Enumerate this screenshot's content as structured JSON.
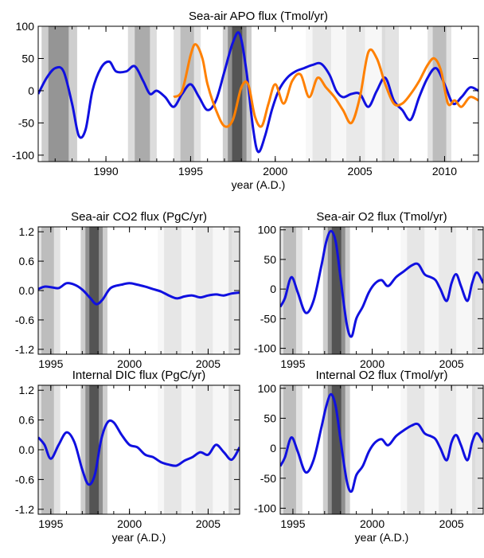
{
  "chart_data": [
    {
      "id": "apo",
      "type": "line",
      "title": "Sea-air APO flux (Tmol/yr)",
      "xlabel": "year (A.D.)",
      "ylabel": "",
      "xlim": [
        1986,
        2012
      ],
      "ylim": [
        -110,
        100
      ],
      "xticks": [
        1990,
        1995,
        2000,
        2005,
        2010
      ],
      "yticks": [
        -100,
        -50,
        0,
        50,
        100
      ],
      "series": [
        {
          "color": "#1010e0",
          "x": [
            1986,
            1986.5,
            1987,
            1987.5,
            1988,
            1988.4,
            1988.8,
            1989.2,
            1989.7,
            1990.2,
            1990.6,
            1991.2,
            1991.7,
            1992.2,
            1992.6,
            1993,
            1993.5,
            1994,
            1994.5,
            1995,
            1995.5,
            1996,
            1996.5,
            1997,
            1997.5,
            1997.9,
            1998.3,
            1998.7,
            1999,
            1999.4,
            1999.8,
            2000.2,
            2000.7,
            2001.2,
            2001.7,
            2002.2,
            2002.7,
            2003.2,
            2003.6,
            2004,
            2004.5,
            2005,
            2005.5,
            2006,
            2006.5,
            2007,
            2007.5,
            2008,
            2008.5,
            2009,
            2009.5,
            2010,
            2010.5,
            2011,
            2011.5,
            2012
          ],
          "y": [
            -5,
            20,
            35,
            30,
            -20,
            -70,
            -60,
            0,
            35,
            45,
            30,
            30,
            38,
            15,
            -5,
            0,
            -10,
            -25,
            -5,
            10,
            -10,
            -30,
            -15,
            30,
            75,
            88,
            30,
            -60,
            -95,
            -70,
            -30,
            0,
            20,
            30,
            35,
            40,
            42,
            25,
            0,
            -10,
            -5,
            -5,
            -25,
            0,
            20,
            -15,
            -30,
            -45,
            -10,
            20,
            35,
            10,
            -20,
            -10,
            5,
            0
          ]
        },
        {
          "color": "#ff8000",
          "x": [
            1994,
            1994.5,
            1995,
            1995.3,
            1995.7,
            1996,
            1996.5,
            1997,
            1997.5,
            1998,
            1998.4,
            1998.8,
            1999.2,
            1999.6,
            2000,
            2000.5,
            2001,
            2001.5,
            2002,
            2002.5,
            2003,
            2003.5,
            2004,
            2004.5,
            2005,
            2005.5,
            2006,
            2006.5,
            2007,
            2007.5,
            2008,
            2008.5,
            2009,
            2009.4,
            2009.8,
            2010.2,
            2010.6,
            2011,
            2011.5,
            2012
          ],
          "y": [
            -10,
            0,
            55,
            72,
            50,
            10,
            -30,
            -55,
            -45,
            5,
            10,
            -40,
            -55,
            -20,
            10,
            -20,
            15,
            25,
            -10,
            20,
            5,
            -10,
            -30,
            -50,
            -10,
            60,
            50,
            10,
            -20,
            -20,
            -5,
            15,
            40,
            50,
            30,
            -20,
            -15,
            -25,
            -10,
            -15
          ]
        }
      ]
    },
    {
      "id": "co2",
      "type": "line",
      "title": "Sea-air CO2 flux (PgC/yr)",
      "xlabel": "",
      "ylabel": "",
      "xlim": [
        1994.2,
        2007
      ],
      "ylim": [
        -1.3,
        1.3
      ],
      "xticks": [
        1995,
        2000,
        2005
      ],
      "yticks": [
        -1.2,
        -0.6,
        0.0,
        0.6,
        1.2
      ],
      "ytick_labels": [
        "-1.2",
        "-0.6",
        "0.0",
        "0.6",
        "1.2"
      ],
      "series": [
        {
          "color": "#1010e0",
          "x": [
            1994.2,
            1994.6,
            1995,
            1995.5,
            1996,
            1996.5,
            1997,
            1997.5,
            1997.9,
            1998.3,
            1998.8,
            1999.5,
            2000,
            2000.5,
            2001,
            2001.5,
            2002,
            2002.5,
            2003,
            2003.5,
            2004,
            2004.5,
            2005,
            2005.5,
            2006,
            2006.5,
            2007
          ],
          "y": [
            0.03,
            0.08,
            0.07,
            0.05,
            0.15,
            0.12,
            0.02,
            -0.15,
            -0.28,
            -0.18,
            0.05,
            0.12,
            0.15,
            0.12,
            0.08,
            0.03,
            -0.02,
            -0.1,
            -0.16,
            -0.12,
            -0.1,
            -0.14,
            -0.1,
            -0.08,
            -0.1,
            -0.06,
            -0.04
          ]
        }
      ]
    },
    {
      "id": "o2",
      "type": "line",
      "title": "Sea-air O2 flux (Tmol/yr)",
      "xlabel": "",
      "ylabel": "",
      "xlim": [
        1994.2,
        2007
      ],
      "ylim": [
        -110,
        105
      ],
      "xticks": [
        1995,
        2000,
        2005
      ],
      "yticks": [
        -100,
        -50,
        0,
        50,
        100
      ],
      "series": [
        {
          "color": "#1010e0",
          "x": [
            1994.2,
            1994.5,
            1994.9,
            1995.3,
            1995.8,
            1996.3,
            1996.8,
            1997.1,
            1997.4,
            1997.7,
            1998,
            1998.4,
            1998.7,
            1999,
            1999.4,
            1999.8,
            2000.2,
            2000.6,
            2001,
            2001.5,
            2002,
            2002.5,
            2002.9,
            2003.3,
            2003.7,
            2004,
            2004.3,
            2004.7,
            2005,
            2005.3,
            2005.6,
            2006,
            2006.3,
            2006.6,
            2007
          ],
          "y": [
            -30,
            -15,
            20,
            -5,
            -40,
            -20,
            40,
            80,
            98,
            80,
            20,
            -60,
            -80,
            -50,
            -30,
            -5,
            10,
            15,
            5,
            20,
            30,
            40,
            42,
            25,
            20,
            15,
            0,
            -20,
            10,
            25,
            5,
            -20,
            10,
            28,
            10
          ]
        }
      ]
    },
    {
      "id": "dic",
      "type": "line",
      "title": "Internal DIC flux (PgC/yr)",
      "xlabel": "year (A.D.)",
      "ylabel": "",
      "xlim": [
        1994.2,
        2007
      ],
      "ylim": [
        -1.3,
        1.3
      ],
      "xticks": [
        1995,
        2000,
        2005
      ],
      "yticks": [
        -1.2,
        -0.6,
        0.0,
        0.6,
        1.2
      ],
      "ytick_labels": [
        "-1.2",
        "-0.6",
        "0.0",
        "0.6",
        "1.2"
      ],
      "series": [
        {
          "color": "#1010e0",
          "x": [
            1994.2,
            1994.6,
            1995,
            1995.5,
            1996,
            1996.5,
            1997,
            1997.4,
            1997.8,
            1998.2,
            1998.6,
            1999,
            1999.5,
            2000,
            2000.5,
            2001,
            2001.5,
            2002,
            2002.5,
            2003,
            2003.5,
            2004,
            2004.5,
            2005,
            2005.5,
            2006,
            2006.5,
            2007
          ],
          "y": [
            0.25,
            0.1,
            -0.18,
            0.1,
            0.35,
            0.15,
            -0.4,
            -0.7,
            -0.5,
            0.2,
            0.55,
            0.55,
            0.3,
            0.1,
            0.05,
            -0.1,
            -0.15,
            -0.25,
            -0.3,
            -0.32,
            -0.22,
            -0.15,
            -0.05,
            -0.1,
            0.1,
            -0.05,
            -0.2,
            0.05
          ]
        }
      ]
    },
    {
      "id": "o2int",
      "type": "line",
      "title": "Internal O2 flux (Tmol/yr)",
      "xlabel": "year (A.D.)",
      "ylabel": "",
      "xlim": [
        1994.2,
        2007
      ],
      "ylim": [
        -110,
        105
      ],
      "xticks": [
        1995,
        2000,
        2005
      ],
      "yticks": [
        -100,
        -50,
        0,
        50,
        100
      ],
      "series": [
        {
          "color": "#1010e0",
          "x": [
            1994.2,
            1994.5,
            1994.9,
            1995.3,
            1995.8,
            1996.3,
            1996.8,
            1997.1,
            1997.4,
            1997.7,
            1998,
            1998.4,
            1998.7,
            1999,
            1999.4,
            1999.8,
            2000.2,
            2000.6,
            2001,
            2001.5,
            2002,
            2002.5,
            2002.9,
            2003.3,
            2003.7,
            2004,
            2004.3,
            2004.7,
            2005,
            2005.3,
            2005.6,
            2006,
            2006.3,
            2006.6,
            2007
          ],
          "y": [
            -30,
            -15,
            18,
            -5,
            -40,
            -20,
            35,
            70,
            90,
            70,
            15,
            -55,
            -72,
            -45,
            -30,
            -5,
            10,
            15,
            5,
            20,
            30,
            38,
            40,
            25,
            20,
            15,
            0,
            -20,
            10,
            22,
            5,
            -20,
            10,
            25,
            10
          ]
        }
      ]
    }
  ]
}
